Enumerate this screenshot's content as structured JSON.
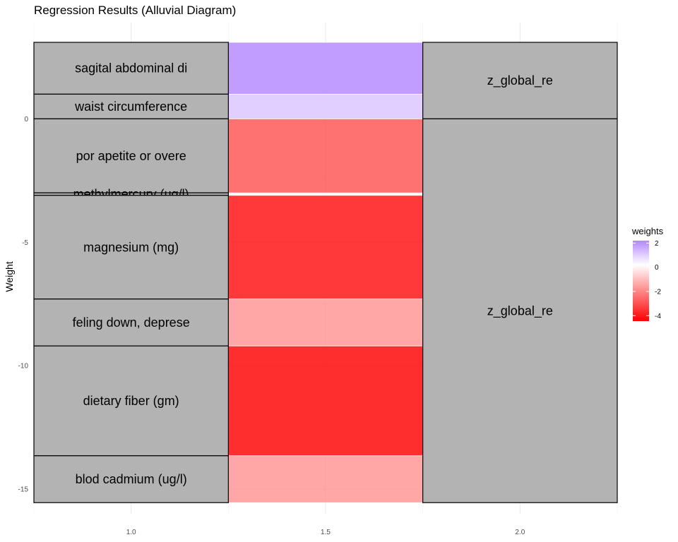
{
  "chart_data": {
    "type": "alluvial",
    "title": "Regression Results (Alluvial Diagram)",
    "ylabel": "Weight",
    "xlabel": "",
    "ylim": [
      -16,
      3.9
    ],
    "xlim": [
      0.75,
      2.25
    ],
    "x_ticks": [
      "1.0",
      "1.5",
      "2.0"
    ],
    "y_ticks": [
      0,
      -5,
      -10,
      -15
    ],
    "y_tick_labels": [
      "0",
      "-5",
      "-10",
      "-15"
    ],
    "strata": [
      {
        "label": "sagital abdominal di",
        "weight": 2.1
      },
      {
        "label": "waist circumference",
        "weight": 1.0
      },
      {
        "label": "por apetite or overe",
        "weight": -3.0
      },
      {
        "label": "methylmercury (ug/l)",
        "weight": -0.1
      },
      {
        "label": "magnesium (mg)",
        "weight": -4.2
      },
      {
        "label": "feling down, deprese",
        "weight": -1.9
      },
      {
        "label": "dietary fiber (gm)",
        "weight": -4.45
      },
      {
        "label": "blod cadmium (ug/l)",
        "weight": -1.9
      }
    ],
    "targets": [
      {
        "label": "z_global_re",
        "range": [
          0,
          3.1
        ]
      },
      {
        "label": "z_global_re",
        "range": [
          -15.55,
          0
        ]
      }
    ],
    "legend": {
      "title": "weights",
      "position": "right",
      "ticks": [
        2,
        0,
        -2,
        -4
      ],
      "tick_labels": [
        "2",
        "0",
        "-2",
        "-4"
      ],
      "low_color": "#ff0000",
      "mid_color": "#ffffff",
      "high_color": "#b388ff"
    },
    "stratum_fill": "#b3b3b3",
    "grid": true
  }
}
